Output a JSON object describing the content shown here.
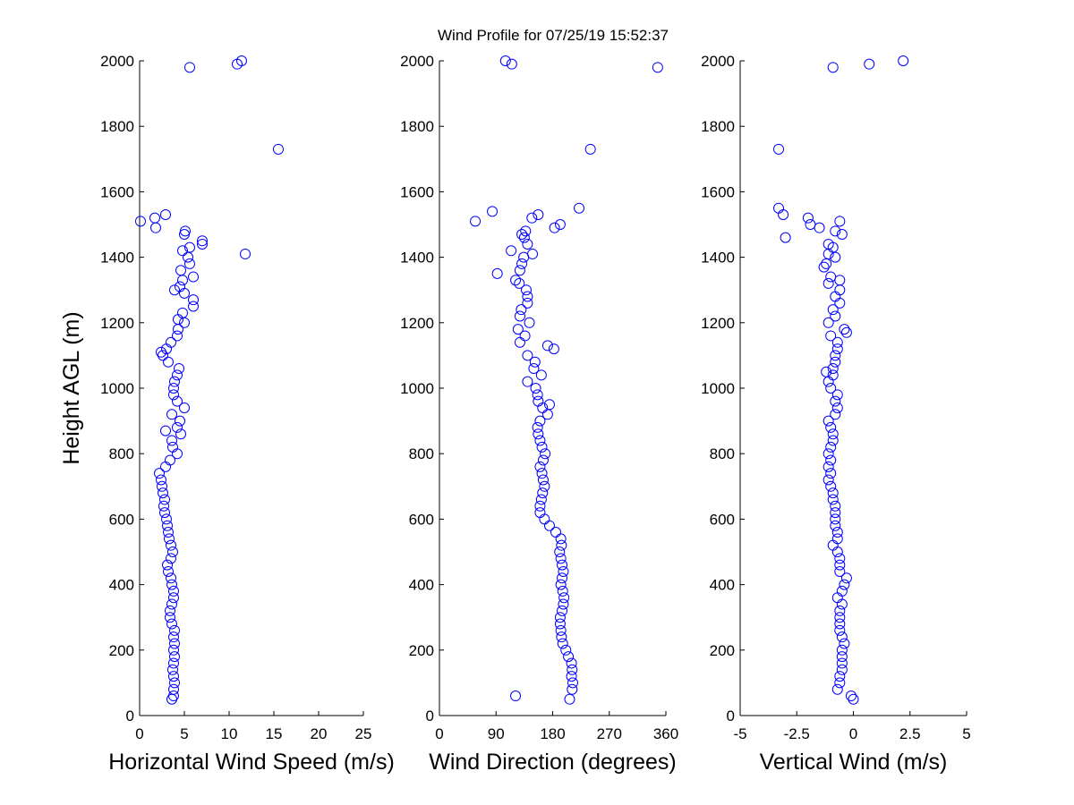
{
  "chart_data": [
    {
      "type": "scatter",
      "title": "Wind Profile for  07/25/19 15:52:37",
      "xlabel": "Horizontal Wind Speed (m/s)",
      "ylabel": "Height AGL (m)",
      "color": "#0000ff",
      "xlim": [
        0,
        25
      ],
      "xticks": [
        0,
        5,
        10,
        15,
        20,
        25
      ],
      "ylim": [
        0,
        2000
      ],
      "yticks": [
        0,
        200,
        400,
        600,
        800,
        1000,
        1200,
        1400,
        1600,
        1800,
        2000
      ],
      "x": [
        3.6,
        3.8,
        3.8,
        3.9,
        3.8,
        3.7,
        3.8,
        3.9,
        3.8,
        3.9,
        3.8,
        3.9,
        3.6,
        3.4,
        3.4,
        3.6,
        3.8,
        3.8,
        3.6,
        3.5,
        3.2,
        3.1,
        3.5,
        3.7,
        3.5,
        3.3,
        3.2,
        3.1,
        3.0,
        2.8,
        2.7,
        2.8,
        2.6,
        2.5,
        2.4,
        2.2,
        2.9,
        3.4,
        4.2,
        3.7,
        3.6,
        4.6,
        2.9,
        4.2,
        4.5,
        3.6,
        5.0,
        4.2,
        3.8,
        3.8,
        3.9,
        4.2,
        4.4,
        3.2,
        2.6,
        2.4,
        3.0,
        3.5,
        4.2,
        4.3,
        5.0,
        4.3,
        4.8,
        6.0,
        6.0,
        5.0,
        3.9,
        4.5,
        4.8,
        6.0,
        4.6,
        5.6,
        5.4,
        11.8,
        4.8,
        5.6,
        7.0,
        7.0,
        5.0,
        5.1,
        1.8,
        0.1,
        1.7,
        2.9,
        15.5,
        5.6,
        10.9,
        11.4
      ],
      "y": [
        50,
        60,
        80,
        100,
        120,
        140,
        160,
        180,
        200,
        220,
        240,
        260,
        280,
        300,
        320,
        340,
        360,
        380,
        400,
        420,
        440,
        460,
        480,
        500,
        520,
        540,
        560,
        580,
        600,
        620,
        640,
        660,
        680,
        700,
        720,
        740,
        760,
        780,
        800,
        820,
        840,
        860,
        870,
        880,
        900,
        920,
        940,
        960,
        980,
        1000,
        1020,
        1040,
        1060,
        1080,
        1100,
        1110,
        1120,
        1140,
        1160,
        1180,
        1200,
        1210,
        1230,
        1250,
        1270,
        1290,
        1300,
        1310,
        1330,
        1340,
        1360,
        1380,
        1400,
        1410,
        1420,
        1430,
        1440,
        1450,
        1470,
        1480,
        1490,
        1510,
        1520,
        1530,
        1730,
        1980,
        1990,
        2000
      ]
    },
    {
      "type": "scatter",
      "xlabel": "Wind Direction (degrees)",
      "color": "#0000ff",
      "xlim": [
        0,
        360
      ],
      "xticks": [
        0,
        90,
        180,
        270,
        360
      ],
      "ylim": [
        0,
        2000
      ],
      "yticks": [
        0,
        200,
        400,
        600,
        800,
        1000,
        1200,
        1400,
        1600,
        1800,
        2000
      ],
      "x": [
        207,
        121,
        211,
        212,
        210,
        211,
        210,
        205,
        201,
        196,
        194,
        193,
        192,
        192,
        195,
        197,
        198,
        196,
        193,
        195,
        197,
        195,
        193,
        191,
        194,
        193,
        185,
        175,
        167,
        160,
        160,
        162,
        164,
        167,
        165,
        163,
        160,
        165,
        168,
        163,
        160,
        157,
        156,
        160,
        172,
        164,
        175,
        157,
        156,
        153,
        140,
        162,
        150,
        152,
        140,
        182,
        172,
        128,
        136,
        125,
        143,
        128,
        130,
        140,
        140,
        138,
        127,
        121,
        92,
        128,
        131,
        134,
        148,
        114,
        140,
        135,
        131,
        137,
        183,
        192,
        57,
        147,
        157,
        84,
        222,
        240,
        347,
        115,
        105
      ],
      "y": [
        50,
        60,
        80,
        100,
        120,
        140,
        160,
        180,
        200,
        220,
        240,
        260,
        280,
        300,
        320,
        340,
        360,
        380,
        400,
        420,
        440,
        460,
        480,
        500,
        520,
        540,
        560,
        580,
        600,
        620,
        640,
        660,
        680,
        700,
        720,
        740,
        760,
        780,
        800,
        820,
        840,
        860,
        880,
        900,
        920,
        940,
        950,
        960,
        980,
        1000,
        1020,
        1040,
        1060,
        1080,
        1100,
        1120,
        1130,
        1140,
        1160,
        1180,
        1200,
        1220,
        1240,
        1260,
        1280,
        1300,
        1320,
        1330,
        1350,
        1360,
        1380,
        1400,
        1410,
        1420,
        1440,
        1460,
        1470,
        1480,
        1490,
        1500,
        1510,
        1520,
        1530,
        1540,
        1550,
        1730,
        1980,
        1990,
        2000
      ]
    },
    {
      "type": "scatter",
      "xlabel": "Vertical Wind (m/s)",
      "color": "#0000ff",
      "xlim": [
        -5,
        5
      ],
      "xticks": [
        -5,
        -2.5,
        0,
        2.5,
        5
      ],
      "ylim": [
        0,
        2000
      ],
      "yticks": [
        0,
        200,
        400,
        600,
        800,
        1000,
        1200,
        1400,
        1600,
        1800,
        2000
      ],
      "x": [
        0,
        -0.1,
        -0.7,
        -0.6,
        -0.6,
        -0.5,
        -0.5,
        -0.5,
        -0.5,
        -0.4,
        -0.5,
        -0.6,
        -0.6,
        -0.6,
        -0.6,
        -0.5,
        -0.7,
        -0.5,
        -0.4,
        -0.3,
        -0.6,
        -0.6,
        -0.6,
        -0.7,
        -0.9,
        -0.7,
        -0.7,
        -0.8,
        -0.8,
        -0.8,
        -0.8,
        -0.9,
        -0.9,
        -1.0,
        -1.1,
        -1.0,
        -1.1,
        -1.0,
        -1.1,
        -1.0,
        -0.9,
        -0.9,
        -1.0,
        -1.1,
        -0.8,
        -0.7,
        -0.8,
        -0.7,
        -1.0,
        -1.1,
        -0.9,
        -1.2,
        -0.9,
        -0.8,
        -0.8,
        -0.7,
        -0.7,
        -1.0,
        -0.3,
        -0.4,
        -1.1,
        -0.8,
        -0.9,
        -0.6,
        -0.8,
        -0.6,
        -1.1,
        -0.6,
        -1.0,
        -1.3,
        -1.2,
        -0.8,
        -1.1,
        -0.9,
        -1.1,
        -3.0,
        -0.5,
        -0.8,
        -1.5,
        -1.9,
        -0.6,
        -2.0,
        -3.1,
        -3.3,
        -3.3,
        -0.9,
        0.7,
        2.2
      ],
      "y": [
        50,
        60,
        80,
        100,
        120,
        140,
        160,
        180,
        200,
        220,
        240,
        260,
        280,
        300,
        320,
        340,
        360,
        380,
        400,
        420,
        440,
        460,
        480,
        500,
        520,
        540,
        560,
        580,
        600,
        620,
        640,
        660,
        680,
        700,
        720,
        740,
        760,
        780,
        800,
        820,
        840,
        860,
        880,
        900,
        920,
        940,
        960,
        980,
        1000,
        1020,
        1040,
        1050,
        1060,
        1080,
        1100,
        1120,
        1140,
        1160,
        1170,
        1180,
        1200,
        1220,
        1240,
        1260,
        1280,
        1300,
        1320,
        1330,
        1340,
        1370,
        1380,
        1400,
        1410,
        1430,
        1440,
        1460,
        1470,
        1480,
        1490,
        1500,
        1510,
        1520,
        1530,
        1550,
        1730,
        1980,
        1990,
        2000
      ]
    }
  ]
}
